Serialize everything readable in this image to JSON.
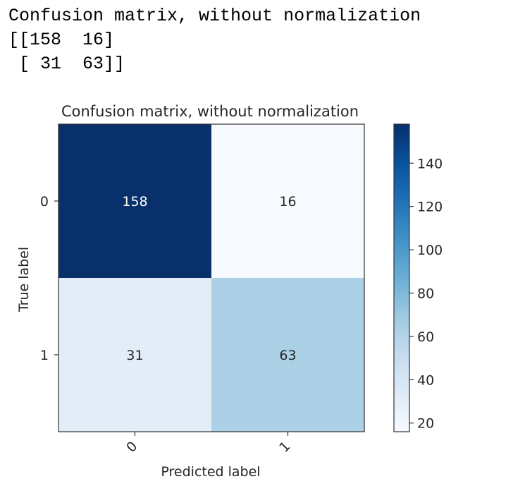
{
  "console": {
    "lines": [
      "Confusion matrix, without normalization",
      "[[158  16]",
      " [ 31  63]]"
    ]
  },
  "chart_data": {
    "type": "heatmap",
    "title": "Confusion matrix, without normalization",
    "xlabel": "Predicted label",
    "ylabel": "True label",
    "x_tick_labels": [
      "0",
      "1"
    ],
    "y_tick_labels": [
      "0",
      "1"
    ],
    "matrix": [
      [
        158,
        16
      ],
      [
        31,
        63
      ]
    ],
    "colormap": "Blues",
    "colormap_stops": [
      "#f7fbff",
      "#deebf7",
      "#c6dbef",
      "#9ecae1",
      "#6baed6",
      "#4292c6",
      "#2171b5",
      "#08519c",
      "#08306b"
    ],
    "colorbar": {
      "min": 16,
      "max": 158,
      "ticks": [
        20,
        40,
        60,
        80,
        100,
        120,
        140
      ]
    },
    "text_color_dark": "#262626",
    "text_color_light": "#ffffff"
  }
}
